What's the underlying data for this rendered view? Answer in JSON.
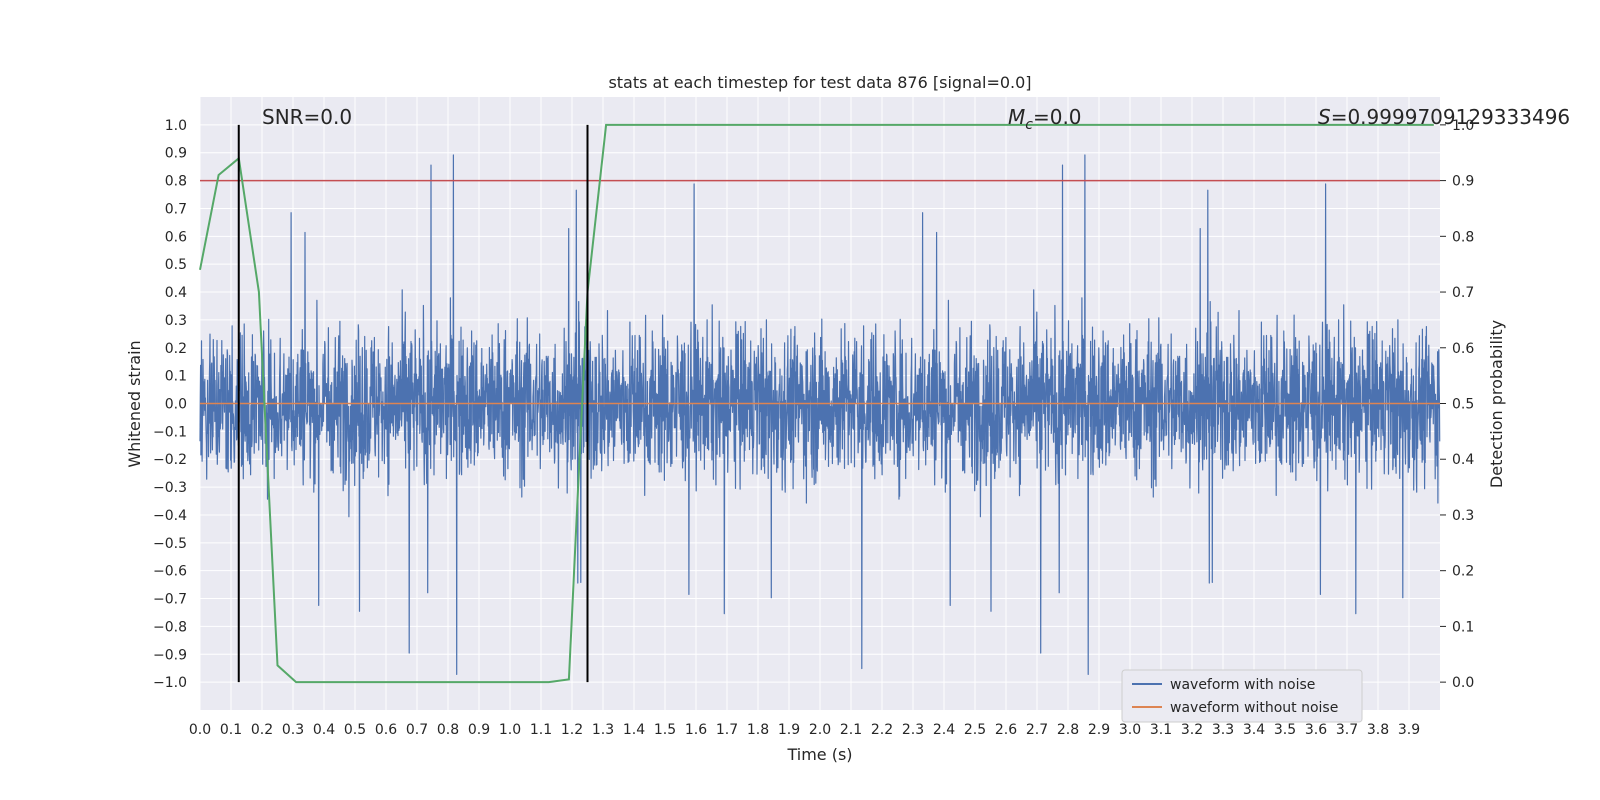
{
  "chart_data": {
    "type": "line",
    "title": "stats at each timestep for test data 876 [signal=0.0]",
    "xlabel": "Time (s)",
    "ylabel": "Whitened strain",
    "y2label": "Detection probability",
    "xlim": [
      0.0,
      4.0
    ],
    "ylim": [
      -1.1,
      1.1
    ],
    "y2lim": [
      -0.05,
      1.05
    ],
    "x_ticks": [
      "0.0",
      "0.1",
      "0.2",
      "0.3",
      "0.4",
      "0.5",
      "0.6",
      "0.7",
      "0.8",
      "0.9",
      "1.0",
      "1.1",
      "1.2",
      "1.3",
      "1.4",
      "1.5",
      "1.6",
      "1.7",
      "1.8",
      "1.9",
      "2.0",
      "2.1",
      "2.2",
      "2.3",
      "2.4",
      "2.5",
      "2.6",
      "2.7",
      "2.8",
      "2.9",
      "3.0",
      "3.1",
      "3.2",
      "3.3",
      "3.4",
      "3.5",
      "3.6",
      "3.7",
      "3.8",
      "3.9"
    ],
    "y_ticks": [
      "1.0",
      "0.9",
      "0.8",
      "0.7",
      "0.6",
      "0.5",
      "0.4",
      "0.3",
      "0.2",
      "0.1",
      "0.0",
      "−0.1",
      "−0.2",
      "−0.3",
      "−0.4",
      "−0.5",
      "−0.6",
      "−0.7",
      "−0.8",
      "−0.9",
      "−1.0"
    ],
    "y2_ticks": [
      "1.0",
      "0.9",
      "0.8",
      "0.7",
      "0.6",
      "0.5",
      "0.4",
      "0.3",
      "0.2",
      "0.1",
      "0.0"
    ],
    "annotations": {
      "snr": "SNR=0.0",
      "mc_symbol": "M",
      "mc_sub": "c",
      "mc_value": "=0.0",
      "s_symbol": "S",
      "s_value": "=0.9999709129333496"
    },
    "threshold_line": {
      "y2": 0.9,
      "color": "#c44e52"
    },
    "vertical_lines": [
      0.125,
      1.25
    ],
    "series": [
      {
        "name": "waveform with noise",
        "color": "#4c72b0",
        "kind": "noise",
        "sample_rate": 1024,
        "min": -1.0,
        "max": 1.0
      },
      {
        "name": "waveform without noise",
        "color": "#dd8452",
        "x": [
          0.0,
          4.0
        ],
        "y": [
          0.0,
          0.0
        ]
      },
      {
        "name": "detection probability",
        "color": "#55a868",
        "axis": "right",
        "x": [
          0.0,
          0.06,
          0.125,
          0.19,
          0.25,
          0.31,
          0.375,
          0.5,
          0.625,
          0.75,
          0.875,
          1.0,
          1.125,
          1.19,
          1.25,
          1.31,
          1.375,
          1.5,
          2.0,
          2.5,
          3.0,
          3.5,
          3.98
        ],
        "y": [
          0.74,
          0.91,
          0.94,
          0.7,
          0.03,
          0.0,
          0.0,
          0.0,
          0.0,
          0.0,
          0.0,
          0.0,
          0.0,
          0.005,
          0.7,
          1.0,
          1.0,
          1.0,
          1.0,
          1.0,
          1.0,
          1.0,
          1.0
        ]
      }
    ],
    "legend": [
      "waveform with noise",
      "waveform without noise"
    ],
    "legend_position": "lower-right",
    "grid": true,
    "colors": {
      "background": "#eaeaf2",
      "grid": "#ffffff",
      "vline": "#000000"
    }
  }
}
